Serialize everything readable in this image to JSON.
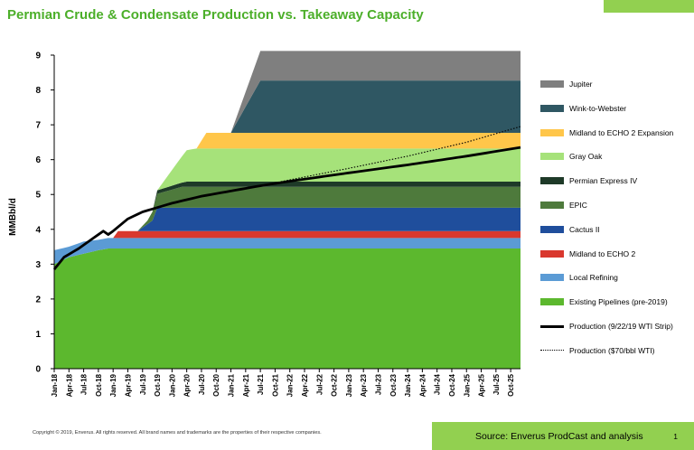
{
  "header": {
    "title": "Permian Crude & Condensate Production vs. Takeaway Capacity",
    "accent_color": "#92d050"
  },
  "footer": {
    "copyright": "Copyright © 2019, Enverus. All rights reserved. All brand names and trademarks are the properties of their respective companies.",
    "source": "Source: Enverus ProdCast and analysis",
    "page_number": "1"
  },
  "chart_data": {
    "type": "area",
    "title": "",
    "ylabel": "MMBbl/d",
    "xlabel": "",
    "ylim": [
      0,
      9
    ],
    "yticks": [
      0,
      1,
      2,
      3,
      4,
      5,
      6,
      7,
      8,
      9
    ],
    "x_months": [
      "Jan-18",
      "Feb-18",
      "Mar-18",
      "Apr-18",
      "May-18",
      "Jun-18",
      "Jul-18",
      "Aug-18",
      "Sep-18",
      "Oct-18",
      "Nov-18",
      "Dec-18",
      "Jan-19",
      "Feb-19",
      "Mar-19",
      "Apr-19",
      "May-19",
      "Jun-19",
      "Jul-19",
      "Aug-19",
      "Sep-19",
      "Oct-19",
      "Nov-19",
      "Dec-19",
      "Jan-20",
      "Feb-20",
      "Mar-20",
      "Apr-20",
      "May-20",
      "Jun-20",
      "Jul-20",
      "Aug-20",
      "Sep-20",
      "Oct-20",
      "Nov-20",
      "Dec-20",
      "Jan-21",
      "Feb-21",
      "Mar-21",
      "Apr-21",
      "May-21",
      "Jun-21",
      "Jul-21",
      "Aug-21",
      "Sep-21",
      "Oct-21",
      "Nov-21",
      "Dec-21",
      "Jan-22",
      "Feb-22",
      "Mar-22",
      "Apr-22",
      "May-22",
      "Jun-22",
      "Jul-22",
      "Aug-22",
      "Sep-22",
      "Oct-22",
      "Nov-22",
      "Dec-22",
      "Jan-23",
      "Feb-23",
      "Mar-23",
      "Apr-23",
      "May-23",
      "Jun-23",
      "Jul-23",
      "Aug-23",
      "Sep-23",
      "Oct-23",
      "Nov-23",
      "Dec-23",
      "Jan-24",
      "Feb-24",
      "Mar-24",
      "Apr-24",
      "May-24",
      "Jun-24",
      "Jul-24",
      "Aug-24",
      "Sep-24",
      "Oct-24",
      "Nov-24",
      "Dec-24",
      "Jan-25",
      "Feb-25",
      "Mar-25",
      "Apr-25",
      "May-25",
      "Jun-25",
      "Jul-25",
      "Aug-25",
      "Sep-25",
      "Oct-25",
      "Nov-25",
      "Dec-25"
    ],
    "x_tick_labels": [
      "Jan-18",
      "Apr-18",
      "Jul-18",
      "Oct-18",
      "Jan-19",
      "Apr-19",
      "Jul-19",
      "Oct-19",
      "Jan-20",
      "Apr-20",
      "Jul-20",
      "Oct-20",
      "Jan-21",
      "Apr-21",
      "Jul-21",
      "Oct-21",
      "Jan-22",
      "Apr-22",
      "Jul-22",
      "Oct-22",
      "Jan-23",
      "Apr-23",
      "Jul-23",
      "Oct-23",
      "Jan-24",
      "Apr-24",
      "Jul-24",
      "Oct-24",
      "Jan-25",
      "Apr-25",
      "Jul-25",
      "Oct-25"
    ],
    "capacity_series": [
      {
        "name": "Existing Pipelines (pre-2019)",
        "color": "#5cb82e",
        "points": [
          [
            "Jan-18",
            3.0
          ],
          [
            "Apr-18",
            3.2
          ],
          [
            "Jul-18",
            3.3
          ],
          [
            "Oct-18",
            3.4
          ],
          [
            "Dec-18",
            3.45
          ],
          [
            "Dec-25",
            3.45
          ]
        ]
      },
      {
        "name": "Local Refining",
        "color": "#5b9bd5",
        "points": [
          [
            "Jan-18",
            0.4
          ],
          [
            "Apr-18",
            0.3
          ],
          [
            "Jul-18",
            0.35
          ],
          [
            "Oct-18",
            0.3
          ],
          [
            "Dec-18",
            0.3
          ],
          [
            "Dec-25",
            0.3
          ]
        ]
      },
      {
        "name": "Midland to ECHO 2",
        "color": "#d9382e",
        "points": [
          [
            "Jan-18",
            0
          ],
          [
            "Jan-19",
            0
          ],
          [
            "Feb-19",
            0.2
          ],
          [
            "Dec-25",
            0.2
          ]
        ]
      },
      {
        "name": "Cactus II",
        "color": "#1f4e9c",
        "points": [
          [
            "Jan-18",
            0
          ],
          [
            "Jun-19",
            0
          ],
          [
            "Jul-19",
            0.1
          ],
          [
            "Sep-19",
            0.3
          ],
          [
            "Oct-19",
            0.67
          ],
          [
            "Dec-25",
            0.67
          ]
        ]
      },
      {
        "name": "EPIC",
        "color": "#4e7a3c",
        "points": [
          [
            "Jan-18",
            0
          ],
          [
            "Jun-19",
            0
          ],
          [
            "Aug-19",
            0.1
          ],
          [
            "Sep-19",
            0.25
          ],
          [
            "Oct-19",
            0.4
          ],
          [
            "Mar-20",
            0.6
          ],
          [
            "Dec-25",
            0.6
          ]
        ]
      },
      {
        "name": "Permian Express IV",
        "color": "#1e3a28",
        "points": [
          [
            "Jan-18",
            0
          ],
          [
            "Sep-19",
            0
          ],
          [
            "Oct-19",
            0.1
          ],
          [
            "Mar-20",
            0.12
          ],
          [
            "Apr-20",
            0.15
          ],
          [
            "Dec-25",
            0.15
          ]
        ]
      },
      {
        "name": "Gray Oak",
        "color": "#a6e27a",
        "points": [
          [
            "Jan-18",
            0
          ],
          [
            "Oct-19",
            0
          ],
          [
            "Apr-20",
            0.9
          ],
          [
            "Jun-20",
            0.95
          ],
          [
            "Dec-25",
            0.95
          ]
        ]
      },
      {
        "name": "Midland to ECHO 2 Expansion",
        "color": "#ffc64a",
        "points": [
          [
            "Jan-18",
            0
          ],
          [
            "Jun-20",
            0
          ],
          [
            "Aug-20",
            0.45
          ],
          [
            "Dec-25",
            0.45
          ]
        ]
      },
      {
        "name": "Wink-to-Webster",
        "color": "#2f5763",
        "points": [
          [
            "Jan-18",
            0
          ],
          [
            "Jan-21",
            0
          ],
          [
            "Jul-21",
            1.5
          ],
          [
            "Dec-25",
            1.5
          ]
        ]
      },
      {
        "name": "Jupiter",
        "color": "#7f7f7f",
        "points": [
          [
            "Jan-18",
            0
          ],
          [
            "Jan-21",
            0
          ],
          [
            "Jul-21",
            0.85
          ],
          [
            "Dec-25",
            0.85
          ]
        ]
      }
    ],
    "production_series": [
      {
        "name": "Production (9/22/19 WTI Strip)",
        "color": "#000000",
        "style": "solid",
        "points": [
          [
            "Jan-18",
            2.85
          ],
          [
            "Mar-18",
            3.2
          ],
          [
            "Jun-18",
            3.45
          ],
          [
            "Sep-18",
            3.75
          ],
          [
            "Nov-18",
            3.95
          ],
          [
            "Dec-18",
            3.85
          ],
          [
            "Jan-19",
            3.95
          ],
          [
            "Apr-19",
            4.3
          ],
          [
            "Jul-19",
            4.5
          ],
          [
            "Jan-20",
            4.75
          ],
          [
            "Jul-20",
            4.95
          ],
          [
            "Jan-21",
            5.1
          ],
          [
            "Jul-21",
            5.25
          ],
          [
            "Jan-22",
            5.38
          ],
          [
            "Jan-23",
            5.62
          ],
          [
            "Jan-24",
            5.85
          ],
          [
            "Jan-25",
            6.1
          ],
          [
            "Dec-25",
            6.35
          ]
        ]
      },
      {
        "name": "Production ($70/bbl WTI)",
        "color": "#000000",
        "style": "dotted",
        "points": [
          [
            "Jul-21",
            5.25
          ],
          [
            "Jan-22",
            5.42
          ],
          [
            "Jan-23",
            5.75
          ],
          [
            "Jan-24",
            6.1
          ],
          [
            "Jan-25",
            6.5
          ],
          [
            "Dec-25",
            6.95
          ]
        ]
      }
    ],
    "legend_order": [
      "Jupiter",
      "Wink-to-Webster",
      "Midland to ECHO 2 Expansion",
      "Gray Oak",
      "Permian Express IV",
      "EPIC",
      "Cactus II",
      "Midland to ECHO 2",
      "Local Refining",
      "Existing Pipelines (pre-2019)",
      "Production (9/22/19 WTI Strip)",
      "Production ($70/bbl WTI)"
    ],
    "legend_position": "right"
  }
}
